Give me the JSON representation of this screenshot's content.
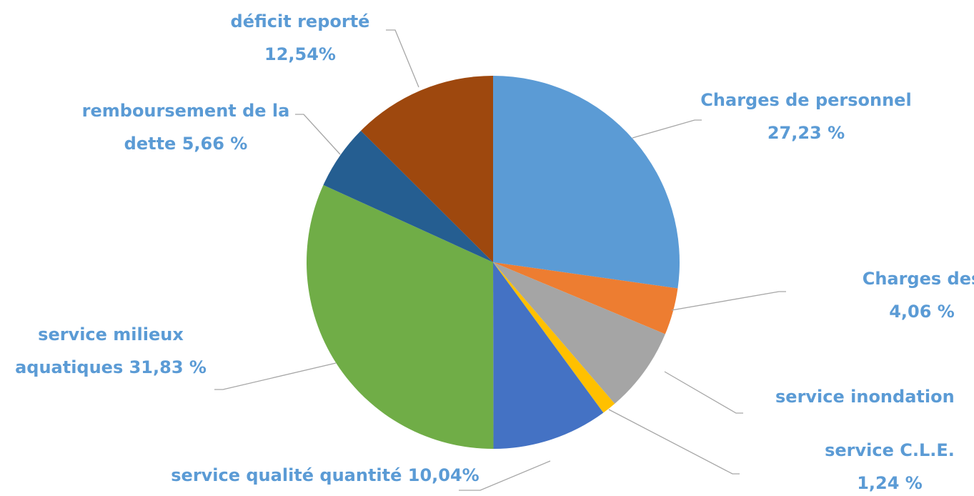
{
  "chart_data": {
    "type": "pie",
    "categories": [
      "Charges de personnel",
      "Charges des",
      "service inondation",
      "service C.L.E.",
      "service qualité quantité",
      "service milieux aquatiques",
      "remboursement de la dette",
      "déficit reporté"
    ],
    "values": [
      27.23,
      4.06,
      7.4,
      1.24,
      10.04,
      31.83,
      5.66,
      12.54
    ],
    "value_labels": [
      "27,23 %",
      "4,06 %",
      null,
      "1,24 %",
      "10,04%",
      "31,83 %",
      "5,66 %",
      "12,54%"
    ],
    "colors": [
      "#5b9bd5",
      "#ed7d31",
      "#a5a5a5",
      "#ffc000",
      "#4472c4",
      "#70ad47",
      "#255e91",
      "#9e480e"
    ],
    "label_color": "#5b9bd5"
  }
}
